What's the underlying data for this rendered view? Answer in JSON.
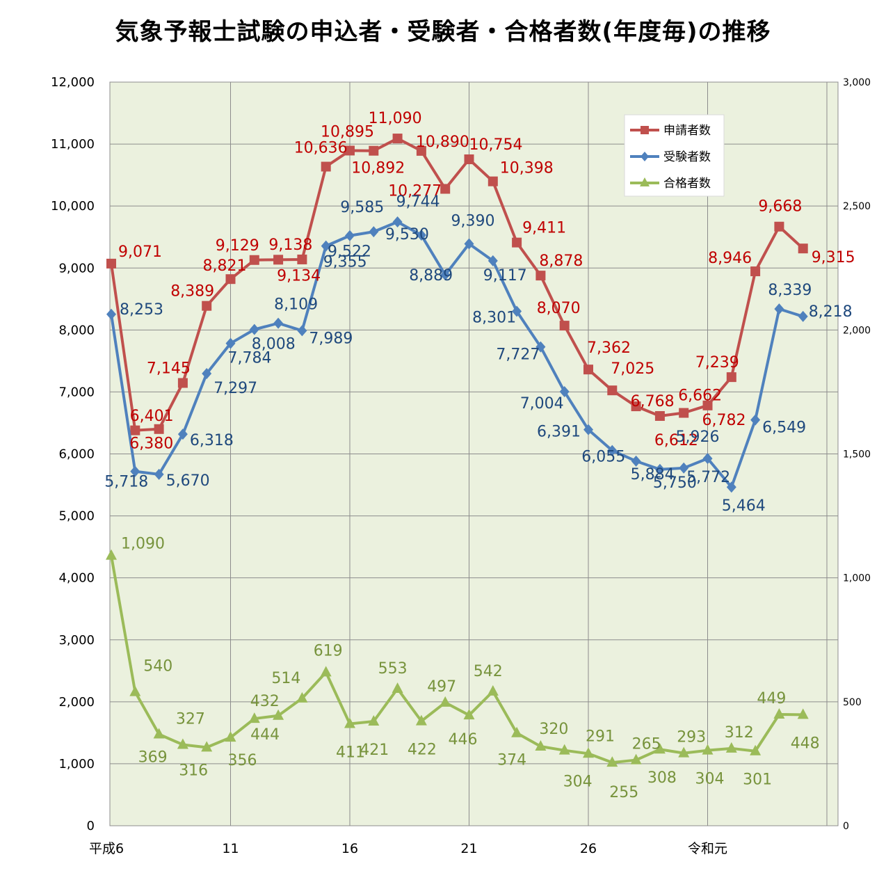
{
  "chart_data": {
    "type": "line",
    "title": "気象予報士試験の申込者・受験者・合格者数(年度毎)の推移",
    "x_tick_labels": [
      "平成6",
      "11",
      "16",
      "21",
      "26",
      "令和元"
    ],
    "y_left": {
      "min": 0,
      "max": 12000,
      "step": 1000,
      "ticks": [
        "0",
        "1,000",
        "2,000",
        "3,000",
        "4,000",
        "5,000",
        "6,000",
        "7,000",
        "8,000",
        "9,000",
        "10,000",
        "11,000",
        "12,000"
      ]
    },
    "y_right": {
      "min": 0,
      "max": 3000,
      "step": 500,
      "ticks": [
        "0",
        "500",
        "1,000",
        "1,500",
        "2,000",
        "2,500",
        "3,000"
      ]
    },
    "grid": true,
    "legend": "top-right",
    "series": [
      {
        "name": "申請者数",
        "axis": "left",
        "color": "#C0504D",
        "marker": "square",
        "label_color": "#C00000",
        "values": [
          9071,
          6380,
          6401,
          7145,
          8389,
          8821,
          9129,
          9134,
          9138,
          10636,
          10895,
          10892,
          11090,
          10890,
          10277,
          10754,
          10398,
          9411,
          8878,
          8070,
          7362,
          7025,
          6768,
          6612,
          6662,
          6782,
          7239,
          8946,
          9668,
          9315
        ],
        "labels": [
          "9,071",
          "6,380",
          "6,401",
          "7,145",
          "8,389",
          "8,821",
          "9,129",
          "9,134",
          "9,138",
          "10,636",
          "10,895",
          "10,892",
          "11,090",
          "10,890",
          "10,277",
          "10,754",
          "10,398",
          "9,411",
          "8,878",
          "8,070",
          "7,362",
          "7,025",
          "6,768",
          "6,612",
          "6,662",
          "6,782",
          "7,239",
          "8,946",
          "9,668",
          "9,315"
        ]
      },
      {
        "name": "受験者数",
        "axis": "left",
        "color": "#4F81BD",
        "marker": "diamond",
        "label_color": "#1F497D",
        "values": [
          8253,
          5718,
          5670,
          6318,
          7297,
          7784,
          8008,
          8109,
          7989,
          9355,
          9522,
          9585,
          9744,
          9530,
          8889,
          9390,
          9117,
          8301,
          7727,
          7004,
          6391,
          6055,
          5884,
          5750,
          5772,
          5926,
          5464,
          6549,
          8339,
          8218
        ],
        "labels": [
          "8,253",
          "5,718",
          "5,670",
          "6,318",
          "7,297",
          "7,784",
          "8,008",
          "8,109",
          "7,989",
          "9,355",
          "9,522",
          "9,585",
          "9,744",
          "9,530",
          "8,889",
          "9,390",
          "9,117",
          "8,301",
          "7,727",
          "7,004",
          "6,391",
          "6,055",
          "5,884",
          "5,750",
          "5,772",
          "5,926",
          "5,464",
          "6,549",
          "8,339",
          "8,218"
        ]
      },
      {
        "name": "合格者数",
        "axis": "right",
        "color": "#9BBB59",
        "marker": "triangle",
        "label_color": "#77933C",
        "values": [
          1090,
          540,
          369,
          327,
          316,
          356,
          432,
          444,
          514,
          619,
          411,
          421,
          553,
          422,
          497,
          446,
          542,
          374,
          320,
          304,
          291,
          255,
          265,
          308,
          293,
          304,
          312,
          301,
          449,
          448
        ],
        "labels": [
          "1,090",
          "540",
          "369",
          "327",
          "316",
          "356",
          "432",
          "444",
          "514",
          "619",
          "411",
          "421",
          "553",
          "422",
          "497",
          "446",
          "542",
          "374",
          "320",
          "304",
          "291",
          "255",
          "265",
          "308",
          "293",
          "304",
          "312",
          "301",
          "449",
          "448"
        ]
      }
    ]
  },
  "legend_items": [
    "申請者数",
    "受験者数",
    "合格者数"
  ]
}
